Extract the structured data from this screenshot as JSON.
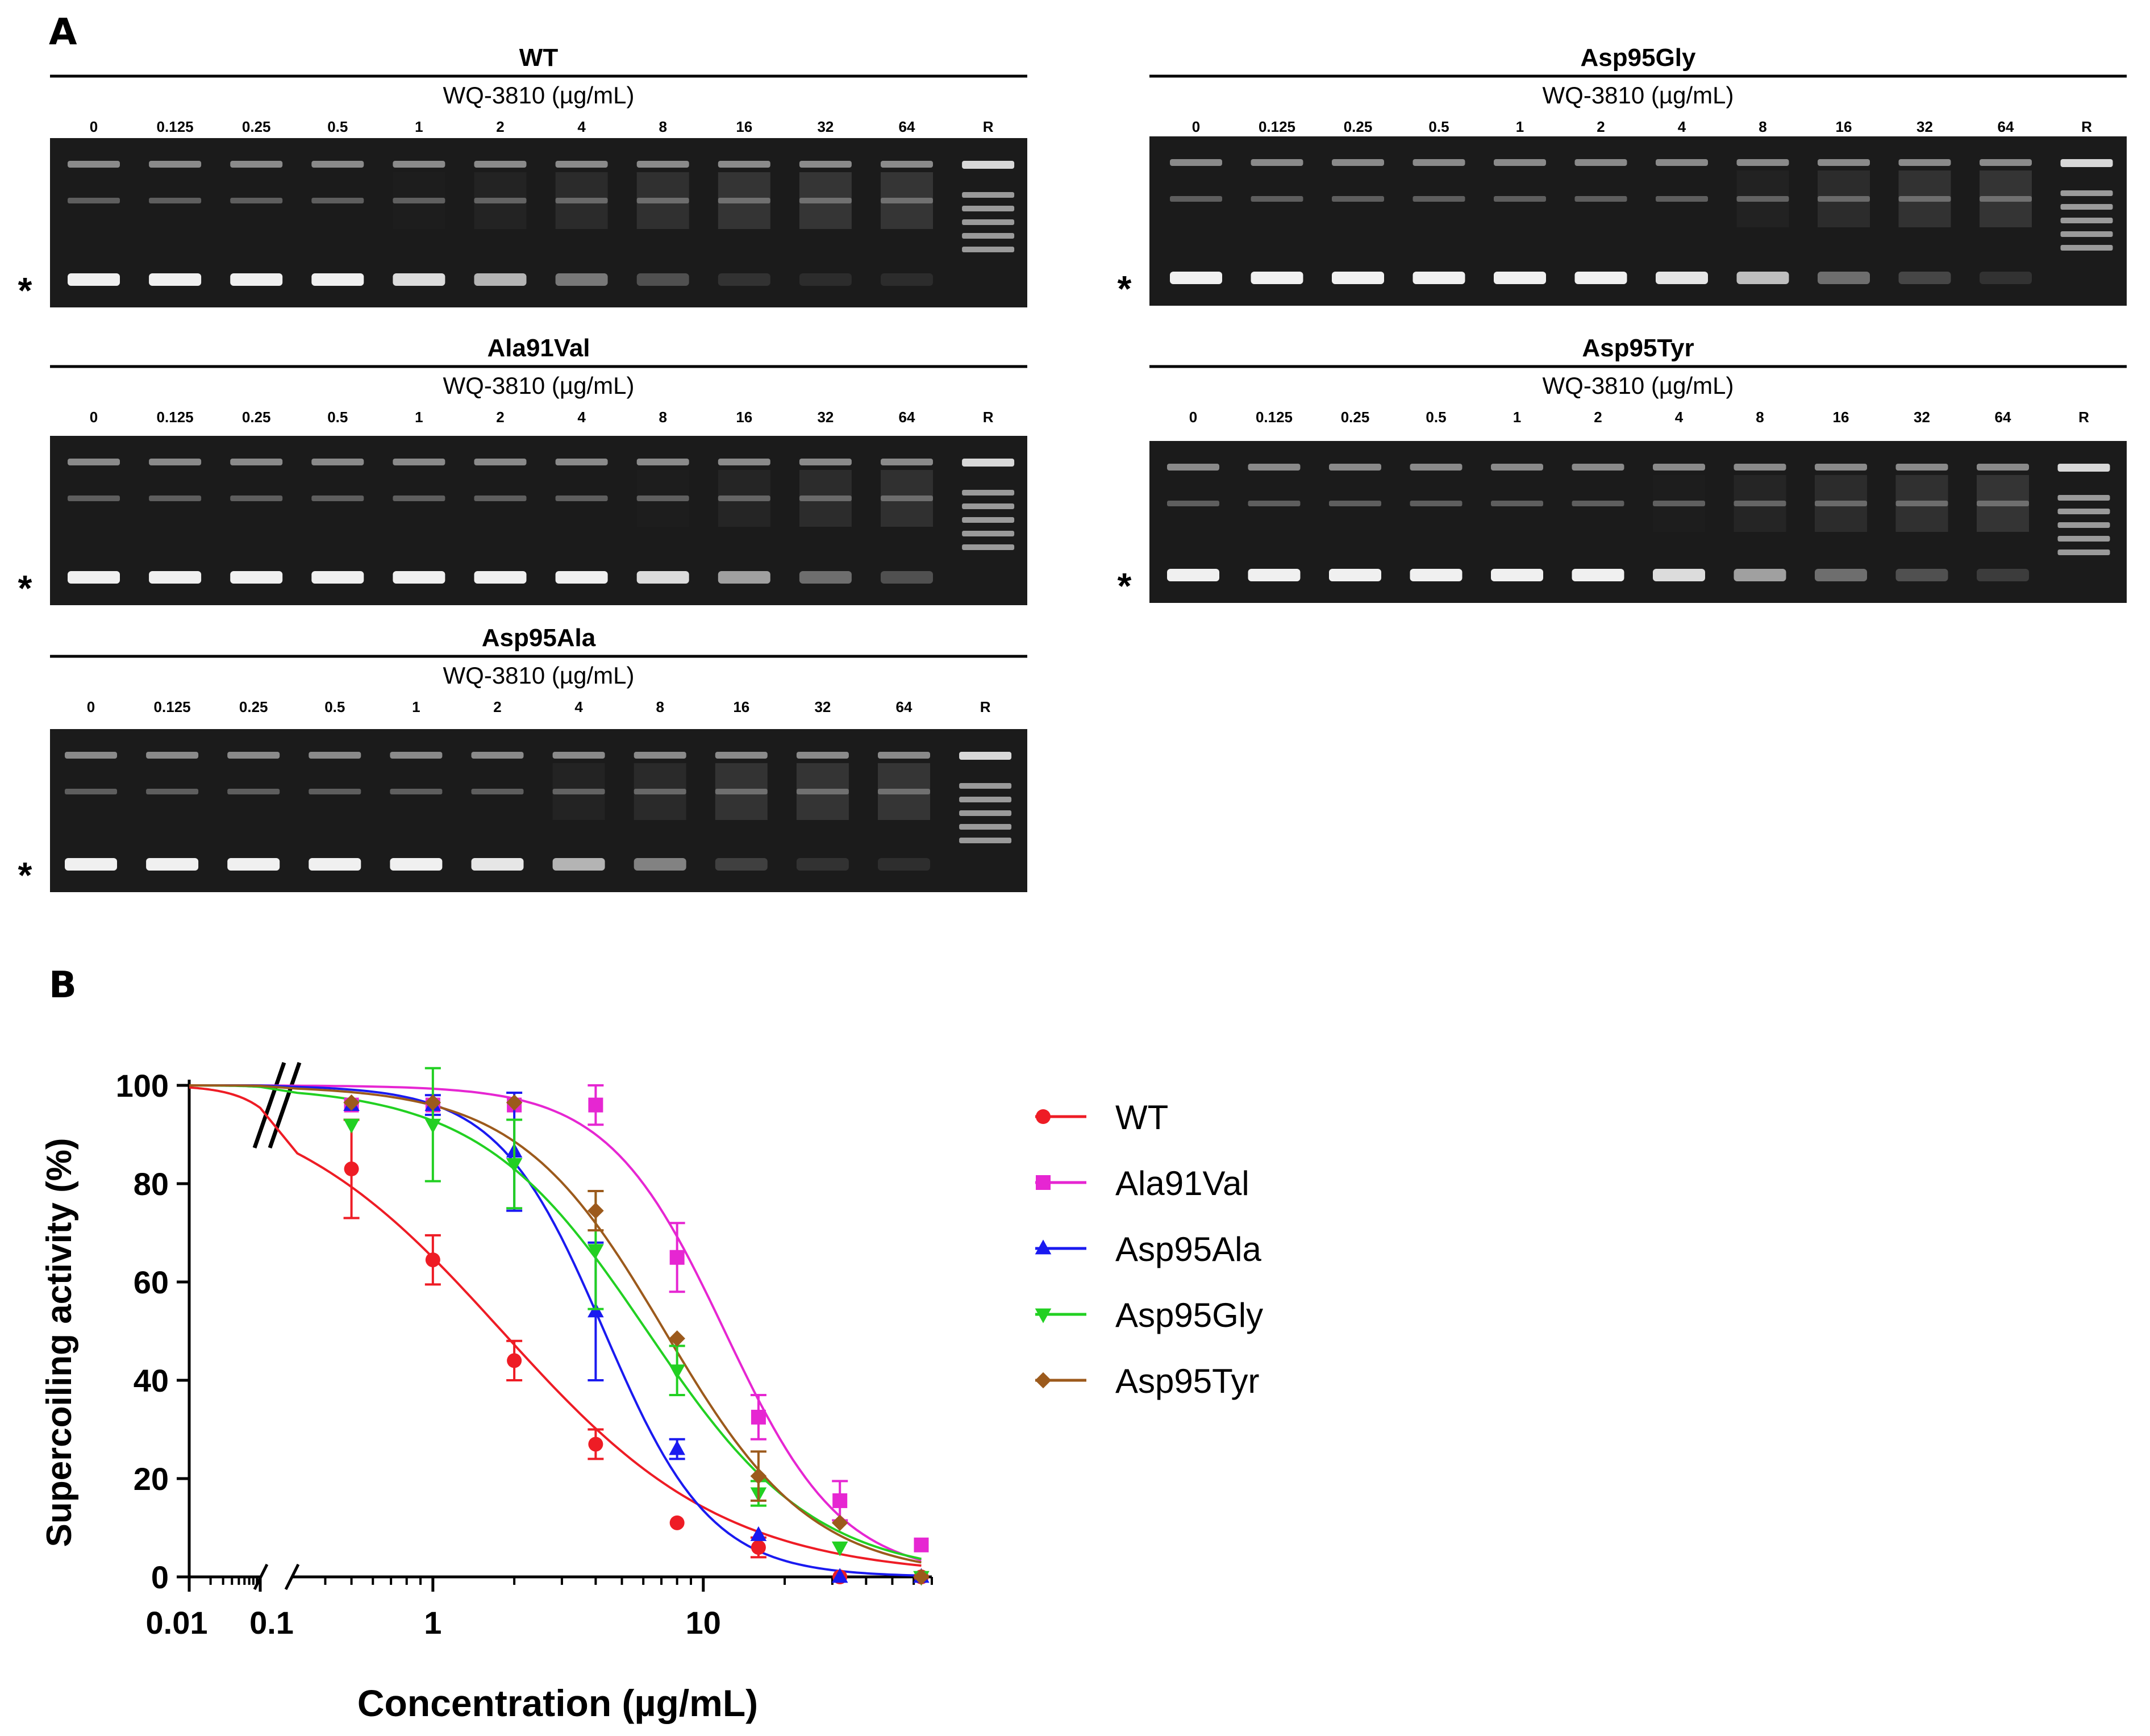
{
  "panel_a": {
    "letter": "A",
    "axis_label": "WQ-3810 (µg/mL)",
    "lanes": [
      "0",
      "0.125",
      "0.25",
      "0.5",
      "1",
      "2",
      "4",
      "8",
      "16",
      "32",
      "64",
      "R"
    ],
    "marker": "*",
    "gels": [
      {
        "title": "WT"
      },
      {
        "title": "Ala91Val"
      },
      {
        "title": "Asp95Ala"
      },
      {
        "title": "Asp95Gly"
      },
      {
        "title": "Asp95Tyr"
      }
    ]
  },
  "panel_b": {
    "letter": "B"
  },
  "chart_data": {
    "type": "scatter",
    "title": "",
    "xlabel": "Concentration (µg/mL)",
    "ylabel": "Supercoiling activity (%)",
    "x_scale": "log",
    "x_axis_break": [
      0.1,
      0.3
    ],
    "xlim": [
      0.01,
      70
    ],
    "ylim": [
      0,
      100
    ],
    "x_ticks": [
      "0.01",
      "0.1",
      "1",
      "10"
    ],
    "y_ticks": [
      "0",
      "20",
      "40",
      "60",
      "80",
      "100"
    ],
    "legend_position": "right",
    "x": [
      0.5,
      1,
      2,
      4,
      8,
      16,
      32,
      64
    ],
    "series": [
      {
        "name": "WT",
        "color": "#ee1c25",
        "marker": "circle",
        "values": [
          83,
          64.5,
          44,
          27,
          11,
          6,
          0,
          0
        ],
        "error": [
          10,
          5,
          4,
          3,
          0,
          2,
          0,
          0
        ],
        "fit_ic50": 1.8,
        "fit_hill": 1.05
      },
      {
        "name": "Ala91Val",
        "color": "#e626d2",
        "marker": "square",
        "values": [
          96,
          96,
          96,
          96,
          65,
          32.5,
          15.5,
          6.5
        ],
        "error": [
          0,
          0,
          0,
          4,
          7,
          4.5,
          4,
          0
        ],
        "fit_ic50": 12,
        "fit_hill": 2.0
      },
      {
        "name": "Asp95Ala",
        "color": "#1a1af0",
        "marker": "triangle-up",
        "values": [
          96,
          96,
          86.5,
          54,
          26,
          8.5,
          0,
          0
        ],
        "error": [
          0,
          2,
          12,
          14,
          2,
          0,
          0,
          0
        ],
        "fit_ic50": 4.3,
        "fit_hill": 2.2
      },
      {
        "name": "Asp95Gly",
        "color": "#22d022",
        "marker": "triangle-down",
        "values": [
          92,
          92,
          84,
          66.5,
          42,
          17,
          6,
          0
        ],
        "error": [
          0,
          11.5,
          9,
          12,
          5,
          2.5,
          0,
          0
        ],
        "fit_ic50": 6.2,
        "fit_hill": 1.4
      },
      {
        "name": "Asp95Tyr",
        "color": "#9c5a1c",
        "marker": "diamond",
        "values": [
          96.5,
          96.5,
          96.5,
          74.5,
          48.5,
          20.5,
          11,
          0
        ],
        "error": [
          0,
          0,
          0,
          4,
          0,
          5,
          0,
          0
        ],
        "fit_ic50": 7.2,
        "fit_hill": 1.6
      }
    ]
  }
}
